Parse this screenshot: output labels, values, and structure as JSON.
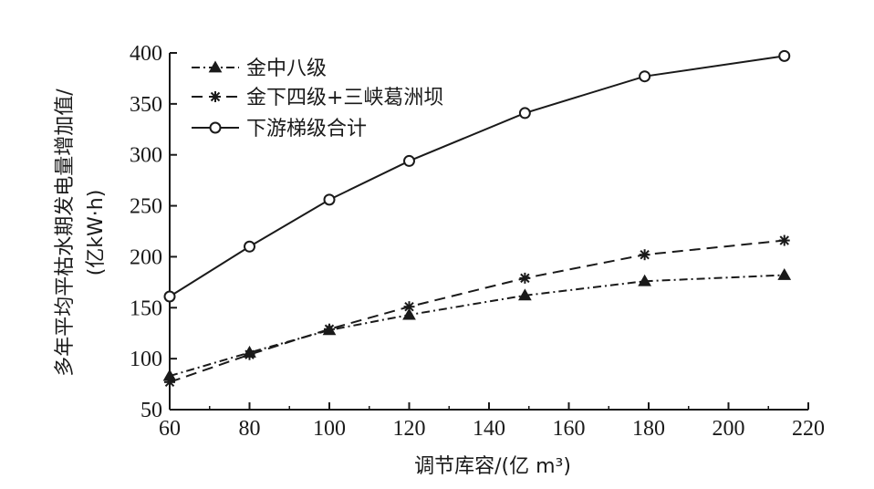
{
  "chart_data": {
    "type": "line",
    "title": "",
    "xlabel": "调节库容/(亿 m³)",
    "ylabel_line1": "多年平均平枯水期发电量增加值/",
    "ylabel_line2": "(亿kW·h)",
    "xlim": [
      60,
      220
    ],
    "ylim": [
      50,
      400
    ],
    "xticks": [
      "60",
      "80",
      "100",
      "120",
      "140",
      "160",
      "180",
      "200",
      "220"
    ],
    "yticks": [
      "50",
      "100",
      "150",
      "200",
      "250",
      "300",
      "350",
      "400"
    ],
    "grid": false,
    "legend_position": "top-left",
    "series": [
      {
        "name": "金中八级",
        "marker": "triangle",
        "line_style": "dash-dot",
        "x": [
          60,
          80,
          100,
          120,
          149,
          179,
          214
        ],
        "y": [
          83,
          106,
          128,
          143,
          162,
          176,
          182
        ]
      },
      {
        "name": "金下四级+三峡葛洲坝",
        "marker": "asterisk",
        "line_style": "dashed",
        "x": [
          60,
          80,
          100,
          120,
          149,
          179,
          214
        ],
        "y": [
          77,
          104,
          129,
          151,
          179,
          202,
          216
        ]
      },
      {
        "name": "下游梯级合计",
        "marker": "circle",
        "line_style": "solid",
        "x": [
          60,
          80,
          100,
          120,
          149,
          179,
          214
        ],
        "y": [
          161,
          210,
          256,
          294,
          341,
          377,
          397
        ]
      }
    ]
  }
}
